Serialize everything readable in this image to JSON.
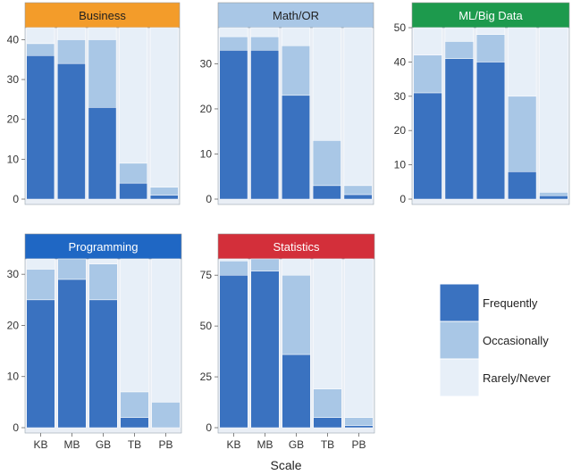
{
  "colors": {
    "frequently": "#3a72c0",
    "occasionally": "#a9c7e6",
    "rarely": "#e7eff8",
    "panel_bg": "#e9eef5",
    "header_text_dark": "#1f1f1f",
    "header_text_light": "#ffffff"
  },
  "chart_data": {
    "type": "bar",
    "stacked": true,
    "xlabel": "Scale",
    "categories": [
      "KB",
      "MB",
      "GB",
      "TB",
      "PB"
    ],
    "legend": {
      "placement": "right",
      "items": [
        {
          "key": "frequently",
          "label": "Frequently"
        },
        {
          "key": "occasionally",
          "label": "Occasionally"
        },
        {
          "key": "rarely",
          "label": "Rarely/Never"
        }
      ]
    },
    "panels": [
      {
        "title": "Business",
        "header_color": "#f39c2a",
        "ylim": [
          0,
          43
        ],
        "yticks": [
          0,
          10,
          20,
          30,
          40
        ],
        "series": [
          {
            "key": "frequently",
            "values": [
              36,
              34,
              23,
              4,
              1
            ]
          },
          {
            "key": "occasionally",
            "values": [
              3,
              6,
              17,
              5,
              2
            ]
          },
          {
            "key": "rarely",
            "values": [
              4,
              3,
              3,
              34,
              40
            ]
          }
        ]
      },
      {
        "title": "Math/OR",
        "header_color": "#a9c7e6",
        "ylim": [
          0,
          38
        ],
        "yticks": [
          0,
          10,
          20,
          30
        ],
        "series": [
          {
            "key": "frequently",
            "values": [
              33,
              33,
              23,
              3,
              1
            ]
          },
          {
            "key": "occasionally",
            "values": [
              3,
              3,
              11,
              10,
              2
            ]
          },
          {
            "key": "rarely",
            "values": [
              2,
              2,
              4,
              25,
              35
            ]
          }
        ]
      },
      {
        "title": "ML/Big Data",
        "header_color": "#1d9a4d",
        "ylim": [
          0,
          50
        ],
        "yticks": [
          0,
          10,
          20,
          30,
          40,
          50
        ],
        "series": [
          {
            "key": "frequently",
            "values": [
              31,
              41,
              40,
              8,
              1
            ]
          },
          {
            "key": "occasionally",
            "values": [
              11,
              5,
              8,
              22,
              1
            ]
          },
          {
            "key": "rarely",
            "values": [
              8,
              4,
              2,
              20,
              48
            ]
          }
        ]
      },
      {
        "title": "Programming",
        "header_color": "#1f67c4",
        "ylim": [
          0,
          33
        ],
        "yticks": [
          0,
          10,
          20,
          30
        ],
        "series": [
          {
            "key": "frequently",
            "values": [
              25,
              29,
              25,
              2,
              0
            ]
          },
          {
            "key": "occasionally",
            "values": [
              6,
              4,
              7,
              5,
              5
            ]
          },
          {
            "key": "rarely",
            "values": [
              2,
              0,
              1,
              26,
              28
            ]
          }
        ]
      },
      {
        "title": "Statistics",
        "header_color": "#d32f3a",
        "ylim": [
          0,
          83
        ],
        "yticks": [
          0,
          25,
          50,
          75
        ],
        "series": [
          {
            "key": "frequently",
            "values": [
              75,
              77,
              36,
              5,
              1
            ]
          },
          {
            "key": "occasionally",
            "values": [
              7,
              6,
              39,
              14,
              4
            ]
          },
          {
            "key": "rarely",
            "values": [
              1,
              0,
              8,
              64,
              78
            ]
          }
        ]
      }
    ]
  }
}
